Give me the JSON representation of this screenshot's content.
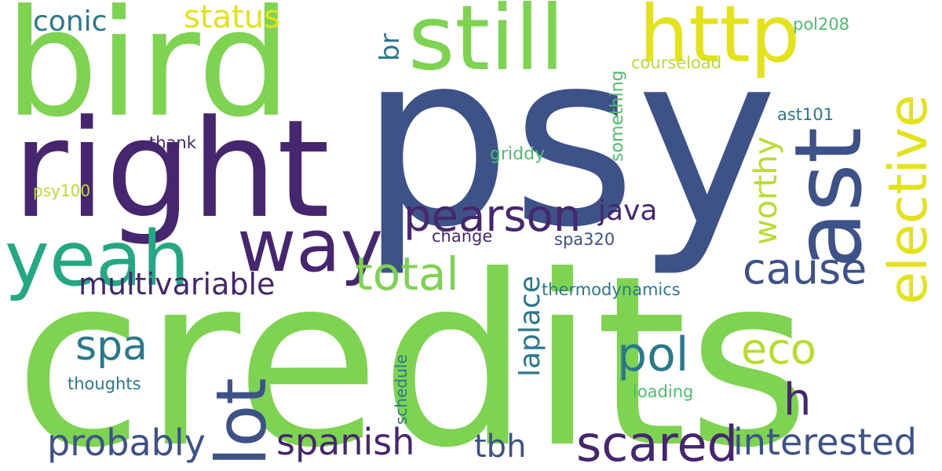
{
  "words": {
    "credits": "credits",
    "psy": "psy",
    "bird": "bird",
    "right": "right",
    "still": "still",
    "ast": "ast",
    "http": "http",
    "elective": "elective",
    "yeah": "yeah",
    "way": "way",
    "lot": "lot",
    "pearson": "pearson",
    "scared": "scared",
    "total": "total",
    "cause": "cause",
    "spa": "spa",
    "pol": "pol",
    "eco": "eco",
    "probably": "probably",
    "spanish": "spanish",
    "interested": "interested",
    "worthy": "worthy",
    "multivariable": "multivariable",
    "tbh": "tbh",
    "h": "h",
    "java": "java",
    "laplace": "laplace",
    "status": "status",
    "conic": "conic",
    "br": "br",
    "something": "something",
    "courseload": "courseload",
    "pol208": "pol208",
    "ast101": "ast101",
    "thank": "thank",
    "griddy": "griddy",
    "psy100": "psy100",
    "change": "change",
    "spa320": "spa320",
    "thermodynamics": "thermodynamics",
    "schedule": "schedule",
    "thoughts": "thoughts",
    "loading": "loading"
  },
  "palette": {
    "green": "#7ed350",
    "navy": "#3e528a",
    "purple": "#472670",
    "yellow": "#e4e21b",
    "teal": "#29788e",
    "seagreen": "#24a884",
    "lime": "#b9dd2c",
    "mint": "#4cbf6c"
  }
}
